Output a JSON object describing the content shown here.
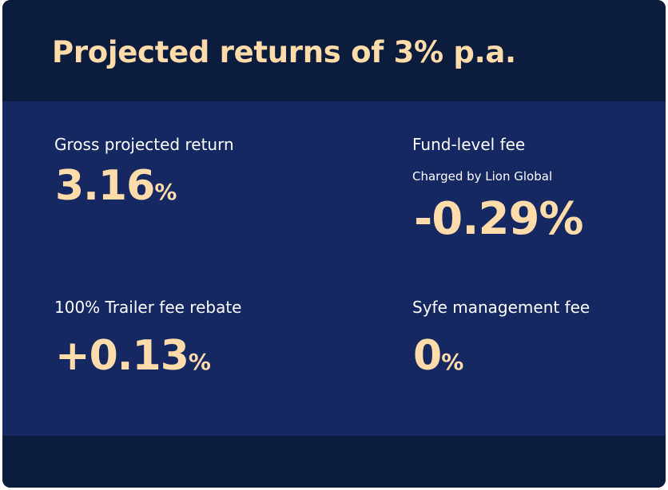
{
  "card": {
    "title": "Projected returns of 3% p.a."
  },
  "items": {
    "gross": {
      "label": "Gross projected return",
      "value": "3.16",
      "unit": "%"
    },
    "fund_fee": {
      "label": "Fund-level fee",
      "sublabel": "Charged by Lion Global",
      "value": "-0.29",
      "unit": "%"
    },
    "trailer": {
      "label": "100% Trailer fee rebate",
      "value": "+0.13",
      "unit": "%"
    },
    "syfe_fee": {
      "label": "Syfe management fee",
      "value": "0",
      "unit": "%"
    }
  },
  "colors": {
    "header_bg": "#0c1c3d",
    "body_bg": "#152862",
    "accent": "#ffdcaa",
    "text": "#ffffff"
  }
}
